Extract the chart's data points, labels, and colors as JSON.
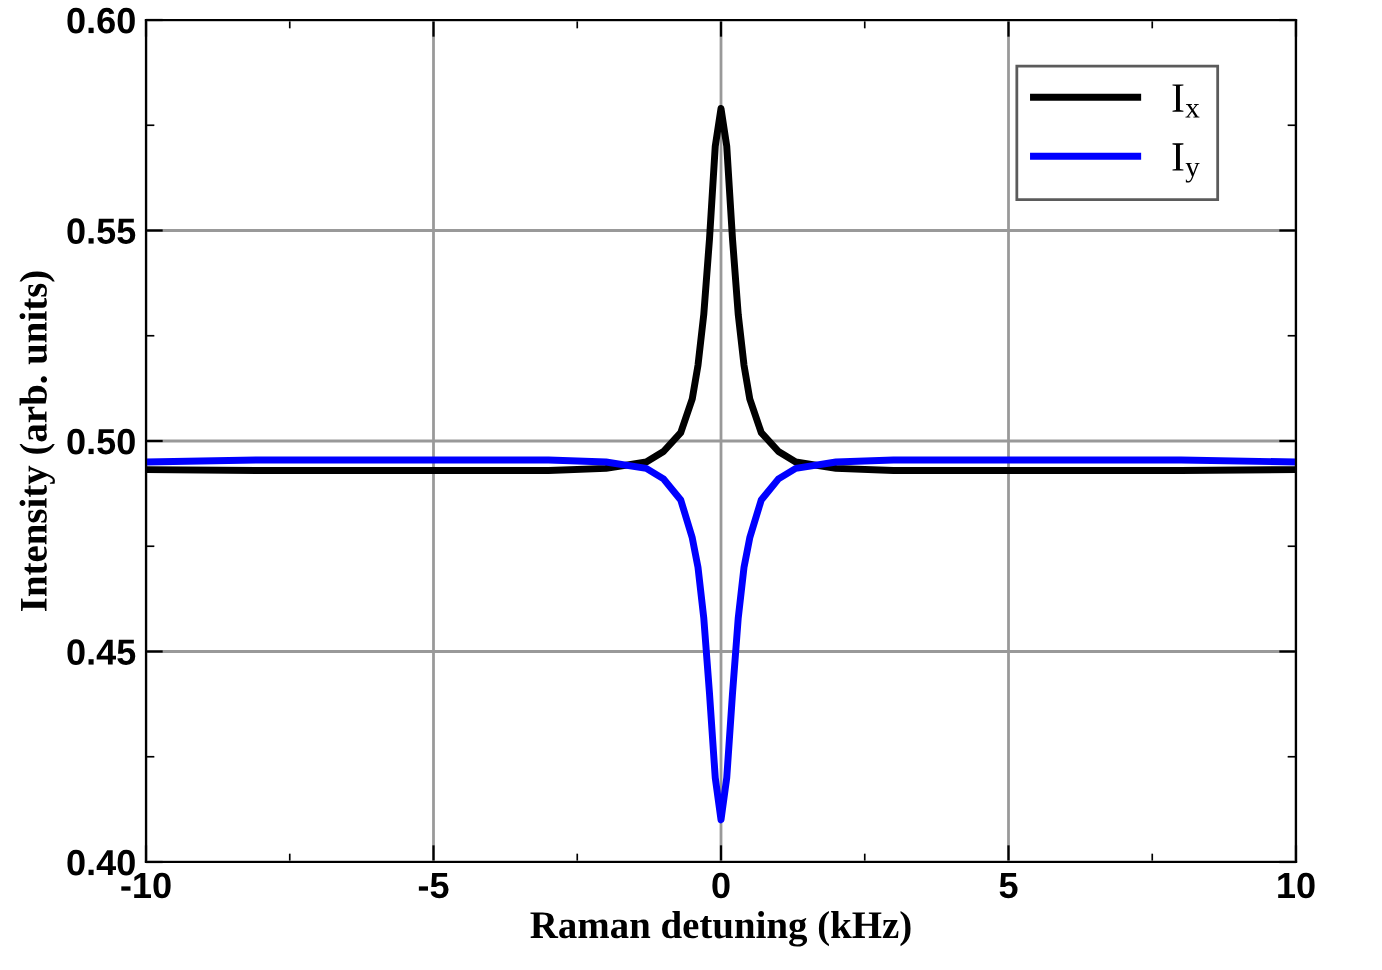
{
  "chart_data": {
    "type": "line",
    "xlabel": "Raman detuning (kHz)",
    "ylabel": "Intensity (arb. units)",
    "xlim": [
      -10,
      10
    ],
    "ylim": [
      0.4,
      0.6
    ],
    "xticks": [
      -10,
      {
        "value": -7.5,
        "label": null
      },
      -5,
      {
        "value": -2.5,
        "label": null
      },
      0,
      {
        "value": 2.5,
        "label": null
      },
      5,
      {
        "value": 7.5,
        "label": null
      },
      10
    ],
    "yticks": [
      {
        "value": 0.4,
        "label": "0.40"
      },
      {
        "value": 0.425,
        "label": null
      },
      {
        "value": 0.45,
        "label": "0.45"
      },
      {
        "value": 0.475,
        "label": null
      },
      {
        "value": 0.5,
        "label": "0.50"
      },
      {
        "value": 0.525,
        "label": null
      },
      {
        "value": 0.55,
        "label": "0.55"
      },
      {
        "value": 0.575,
        "label": null
      },
      {
        "value": 0.6,
        "label": "0.60"
      }
    ],
    "grid": true,
    "legend": "top right",
    "line_style": "solid",
    "marker": "none",
    "x": [
      -10,
      -8,
      -5,
      -3,
      -2,
      -1.3,
      -1,
      -0.7,
      -0.5,
      -0.4,
      -0.3,
      -0.2,
      -0.1,
      0,
      0.1,
      0.2,
      0.3,
      0.4,
      0.5,
      0.7,
      1,
      1.3,
      2,
      3,
      5,
      8,
      10
    ],
    "series": [
      {
        "name": "I$_{x}$",
        "color": "#000000",
        "values": [
          0.4932,
          0.493,
          0.493,
          0.493,
          0.4935,
          0.495,
          0.4975,
          0.502,
          0.51,
          0.518,
          0.53,
          0.548,
          0.57,
          0.579,
          0.57,
          0.548,
          0.53,
          0.518,
          0.51,
          0.502,
          0.4975,
          0.495,
          0.4935,
          0.493,
          0.493,
          0.493,
          0.4932
        ]
      },
      {
        "name": "I$_{y}$",
        "color": "#0000ff",
        "values": [
          0.495,
          0.4955,
          0.4955,
          0.4955,
          0.495,
          0.4935,
          0.491,
          0.486,
          0.477,
          0.47,
          0.458,
          0.44,
          0.42,
          0.41,
          0.42,
          0.44,
          0.458,
          0.47,
          0.477,
          0.486,
          0.491,
          0.4935,
          0.495,
          0.4955,
          0.4955,
          0.4955,
          0.495
        ]
      }
    ]
  }
}
